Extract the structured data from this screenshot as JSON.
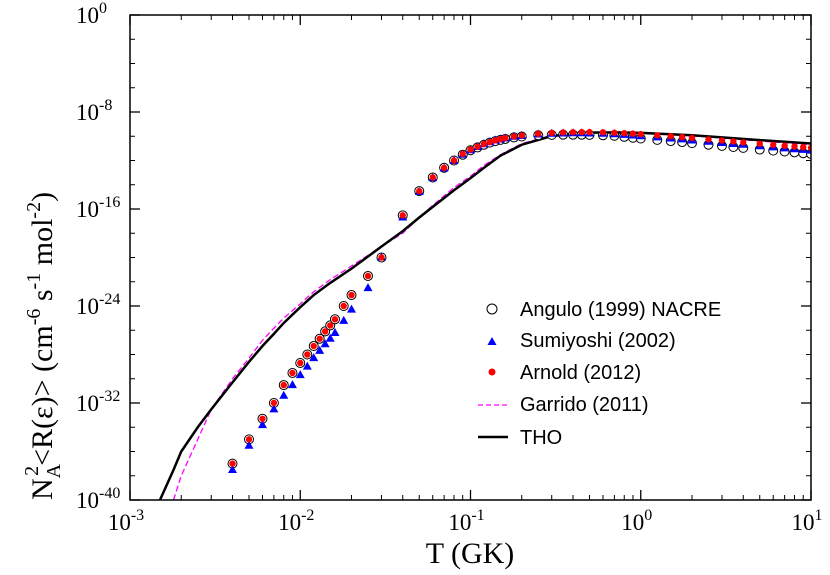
{
  "chart_data": {
    "type": "scatter",
    "xlabel": "T  (GK)",
    "ylabel": {
      "prefix": "N",
      "sub": "A",
      "sup": "2",
      "mid": "<R(ε)>  (cm",
      "exp1": "-6",
      "mid2": " s",
      "exp2": "-1",
      "mid3": " mol",
      "exp3": "-2",
      "end": ")"
    },
    "xscale": "log",
    "yscale": "log",
    "xlim": [
      0.001,
      10
    ],
    "ylim": [
      1e-40,
      1
    ],
    "x_ticks": [
      {
        "v": 0.001,
        "base": "10",
        "exp": "-3"
      },
      {
        "v": 0.01,
        "base": "10",
        "exp": "-2"
      },
      {
        "v": 0.1,
        "base": "10",
        "exp": "-1"
      },
      {
        "v": 1,
        "base": "10",
        "exp": "0"
      },
      {
        "v": 10,
        "base": "10",
        "exp": "1"
      }
    ],
    "y_ticks": [
      {
        "v": 1,
        "base": "10",
        "exp": "0"
      },
      {
        "v": 1e-08,
        "base": "10",
        "exp": "-8"
      },
      {
        "v": 1e-16,
        "base": "10",
        "exp": "-16"
      },
      {
        "v": 1e-24,
        "base": "10",
        "exp": "-24"
      },
      {
        "v": 1e-32,
        "base": "10",
        "exp": "-32"
      },
      {
        "v": 1e-40,
        "base": "10",
        "exp": "-40"
      }
    ],
    "legend_position": "lower-right",
    "series": [
      {
        "name": "Angulo (1999) NACRE",
        "kind": "points",
        "marker": "open-circle",
        "color": "#000000",
        "x": [
          0.004,
          0.005,
          0.006,
          0.007,
          0.008,
          0.009,
          0.01,
          0.011,
          0.012,
          0.013,
          0.014,
          0.015,
          0.016,
          0.018,
          0.02,
          0.025,
          0.03,
          0.04,
          0.05,
          0.06,
          0.07,
          0.08,
          0.09,
          0.1,
          0.11,
          0.12,
          0.13,
          0.14,
          0.15,
          0.16,
          0.18,
          0.2,
          0.25,
          0.3,
          0.35,
          0.4,
          0.45,
          0.5,
          0.6,
          0.7,
          0.8,
          0.9,
          1.0,
          1.25,
          1.5,
          1.75,
          2.0,
          2.5,
          3.0,
          3.5,
          4.0,
          5.0,
          6.0,
          7.0,
          8.0,
          9.0,
          10.0
        ],
        "y": [
          1e-37,
          1e-35,
          5e-34,
          1e-32,
          3e-31,
          3e-30,
          2e-29,
          1e-28,
          5e-28,
          2e-27,
          8e-27,
          2.5e-26,
          8e-26,
          1e-24,
          8e-24,
          3e-22,
          1e-20,
          3e-17,
          3e-15,
          4e-14,
          2.5e-13,
          1e-12,
          3e-12,
          7e-12,
          1.2e-11,
          2e-11,
          3e-11,
          4e-11,
          5e-11,
          6e-11,
          8e-11,
          9.5e-11,
          1.2e-10,
          1.3e-10,
          1.35e-10,
          1.35e-10,
          1.35e-10,
          1.3e-10,
          1.2e-10,
          1.1e-10,
          9e-11,
          7.5e-11,
          6.5e-11,
          5e-11,
          4e-11,
          3.3e-11,
          2.7e-11,
          2e-11,
          1.6e-11,
          1.3e-11,
          1.1e-11,
          8e-12,
          6.5e-12,
          5.5e-12,
          4.7e-12,
          4e-12,
          3.5e-12
        ]
      },
      {
        "name": "Sumiyoshi (2002)",
        "kind": "points",
        "marker": "filled-triangle",
        "color": "#0000ff",
        "x": [
          0.004,
          0.005,
          0.006,
          0.007,
          0.008,
          0.009,
          0.01,
          0.011,
          0.012,
          0.013,
          0.014,
          0.015,
          0.016,
          0.018,
          0.02,
          0.025,
          0.03,
          0.04,
          0.05,
          0.06,
          0.07,
          0.08,
          0.09,
          0.1,
          0.11,
          0.12,
          0.13,
          0.14,
          0.15,
          0.16,
          0.18,
          0.2,
          0.25,
          0.3,
          0.35,
          0.4,
          0.45,
          0.5,
          0.6,
          0.7,
          0.8,
          0.9,
          1.0,
          1.25,
          1.5,
          1.75,
          2.0,
          2.5,
          3.0,
          3.5,
          4.0,
          5.0,
          6.0,
          7.0,
          8.0,
          9.0,
          10.0
        ],
        "y": [
          3e-38,
          3e-36,
          1.5e-34,
          3e-33,
          4e-32,
          3e-31,
          2e-30,
          1e-29,
          5e-29,
          2e-28,
          7e-28,
          2e-27,
          6e-27,
          6e-26,
          5e-25,
          3e-23,
          1e-20,
          2e-17,
          2.5e-15,
          3.5e-14,
          2.2e-13,
          9e-13,
          3e-12,
          7e-12,
          1.3e-11,
          2.2e-11,
          3.2e-11,
          4.5e-11,
          5.5e-11,
          6.5e-11,
          9e-11,
          1.05e-10,
          1.4e-10,
          1.6e-10,
          1.7e-10,
          1.75e-10,
          1.75e-10,
          1.7e-10,
          1.6e-10,
          1.45e-10,
          1.3e-10,
          1.15e-10,
          1e-10,
          8e-11,
          6.5e-11,
          5.5e-11,
          4.5e-11,
          3.5e-11,
          2.8e-11,
          2.3e-11,
          2e-11,
          1.5e-11,
          1.2e-11,
          1e-11,
          8.5e-12,
          7.5e-12,
          6.5e-12
        ]
      },
      {
        "name": "Arnold (2012)",
        "kind": "points",
        "marker": "filled-circle",
        "color": "#ff0000",
        "x": [
          0.004,
          0.005,
          0.006,
          0.007,
          0.008,
          0.009,
          0.01,
          0.011,
          0.012,
          0.013,
          0.014,
          0.015,
          0.016,
          0.018,
          0.02,
          0.025,
          0.03,
          0.04,
          0.05,
          0.06,
          0.07,
          0.08,
          0.09,
          0.1,
          0.11,
          0.12,
          0.13,
          0.14,
          0.15,
          0.16,
          0.18,
          0.2,
          0.25,
          0.3,
          0.35,
          0.4,
          0.45,
          0.5,
          0.6,
          0.7,
          0.8,
          0.9,
          1.0,
          1.25,
          1.5,
          1.75,
          2.0,
          2.5,
          3.0,
          3.5,
          4.0,
          5.0,
          6.0,
          7.0,
          8.0,
          9.0,
          10.0
        ],
        "y": [
          1e-37,
          1e-35,
          5e-34,
          1e-32,
          3e-31,
          3e-30,
          2e-29,
          1e-28,
          5e-28,
          2e-27,
          8e-27,
          2.5e-26,
          8e-26,
          1e-24,
          8e-24,
          3e-22,
          1e-20,
          3e-17,
          3e-15,
          4e-14,
          2.5e-13,
          1e-12,
          3.5e-12,
          8e-12,
          1.4e-11,
          2.3e-11,
          3.4e-11,
          4.6e-11,
          5.8e-11,
          7e-11,
          9.5e-11,
          1.15e-10,
          1.6e-10,
          1.9e-10,
          2.05e-10,
          2.15e-10,
          2.2e-10,
          2.2e-10,
          2.1e-10,
          1.95e-10,
          1.8e-10,
          1.65e-10,
          1.5e-10,
          1.2e-10,
          1e-10,
          8.5e-11,
          7.2e-11,
          5.5e-11,
          4.5e-11,
          3.7e-11,
          3.1e-11,
          2.4e-11,
          1.95e-11,
          1.65e-11,
          1.42e-11,
          1.25e-11,
          1.1e-11
        ]
      },
      {
        "name": "Garrido (2011)",
        "kind": "line",
        "style": "dashed",
        "color": "#ff00ff",
        "x": [
          0.0018,
          0.002,
          0.0025,
          0.003,
          0.004,
          0.005,
          0.006,
          0.007,
          0.008,
          0.01,
          0.012,
          0.015,
          0.02,
          0.025,
          0.03,
          0.04,
          0.05,
          0.06,
          0.07,
          0.08,
          0.1,
          0.12,
          0.15,
          0.2,
          0.3,
          0.5,
          0.7,
          1.0,
          2.0,
          3.0,
          5.0,
          10.0
        ],
        "y": [
          1e-40,
          1e-38,
          1e-35,
          3e-33,
          1e-30,
          5e-29,
          1.5e-27,
          1.5e-26,
          1e-25,
          1.5e-24,
          1.5e-23,
          1.5e-22,
          2e-21,
          1.5e-20,
          8e-20,
          1e-18,
          2e-17,
          2e-16,
          1.2e-15,
          6e-15,
          5e-14,
          4e-13,
          3e-12,
          2.5e-11,
          1.2e-10,
          2.2e-10,
          2.2e-10,
          1.9e-10,
          1.1e-10,
          7e-11,
          4e-11,
          2e-11
        ]
      },
      {
        "name": "THO",
        "kind": "line",
        "style": "solid",
        "color": "#000000",
        "x": [
          0.0015,
          0.0018,
          0.002,
          0.0025,
          0.003,
          0.004,
          0.005,
          0.006,
          0.007,
          0.008,
          0.01,
          0.012,
          0.015,
          0.02,
          0.025,
          0.03,
          0.04,
          0.05,
          0.06,
          0.07,
          0.08,
          0.1,
          0.12,
          0.15,
          0.2,
          0.3,
          0.5,
          0.7,
          1.0,
          2.0,
          3.0,
          5.0,
          10.0
        ],
        "y": [
          1e-40,
          3e-38,
          1e-36,
          1e-34,
          3e-33,
          5e-31,
          2.5e-29,
          5e-28,
          5e-27,
          4e-26,
          8e-25,
          8e-24,
          8e-23,
          1.2e-21,
          1.2e-20,
          8e-20,
          1.5e-18,
          2e-17,
          1.5e-16,
          8e-16,
          3.5e-15,
          3.5e-14,
          2.5e-13,
          2.5e-12,
          2e-11,
          1.05e-10,
          2e-10,
          2.1e-10,
          1.9e-10,
          1.2e-10,
          8e-11,
          4.8e-11,
          2.5e-11
        ]
      }
    ]
  }
}
